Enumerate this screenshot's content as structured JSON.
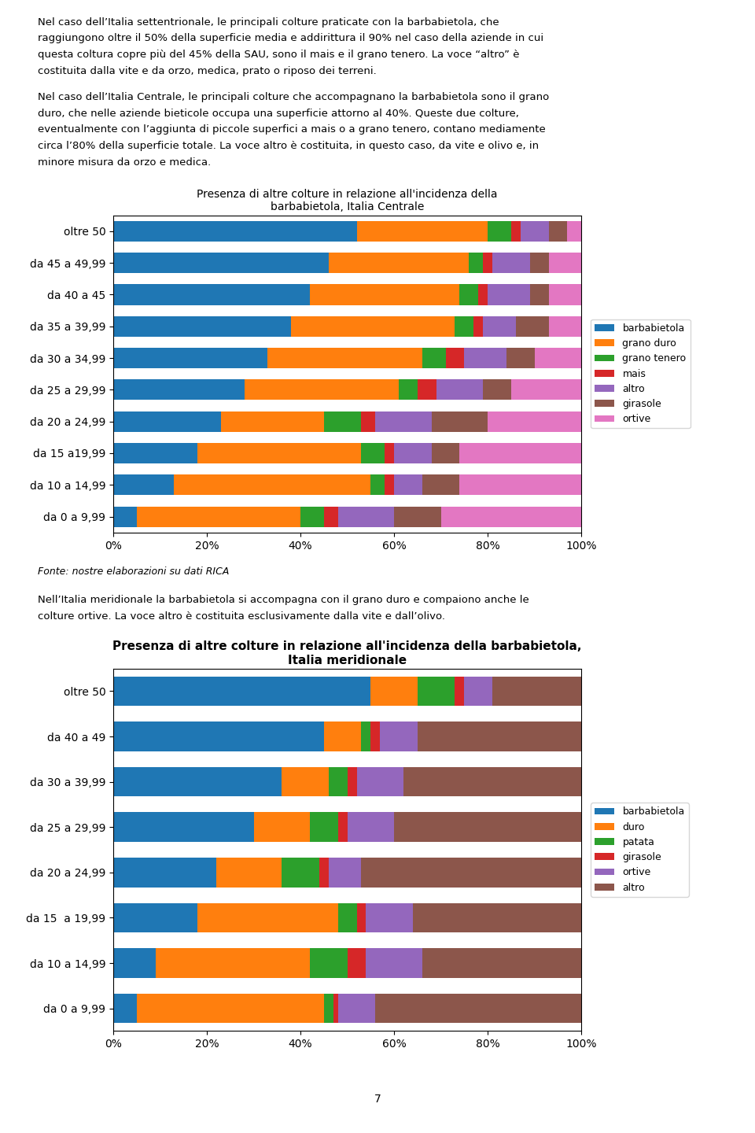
{
  "chart_data": [
    {
      "type": "bar",
      "orientation": "horizontal",
      "stacked": true,
      "grid": false,
      "legend": "right",
      "text_above": [
        [
          "Nel caso dell’Italia settentrionale, le principali colture praticate con la barbabietola, che",
          "raggiungono oltre il 50% della superficie media e addirittura il 90% nel caso della aziende in cui",
          "questa coltura copre più del 45% della SAU, sono il mais e il grano tenero. La voce “altro” è",
          "costituita dalla vite e da orzo, medica, prato o riposo dei terreni."
        ],
        [
          "Nel caso dell’Italia Centrale, le principali colture che accompagnano la barbabietola sono il grano",
          "duro, che nelle aziende bieticole occupa una superficie attorno al 40%. Queste due colture,",
          "eventualmente con l’aggiunta di piccole superfici a mais o a grano tenero, contano mediamente",
          "circa l’80% della superficie totale. La voce altro è costituita, in questo caso, da vite e olivo e, in",
          "minore misura da orzo e medica."
        ]
      ],
      "title": "Presenza di altre colture in relazione all'incidenza della\nbarbabietola, Italia Centrale",
      "categories": [
        "oltre 50",
        "da 45 a 49,99",
        "da 40 a 45",
        "da 35 a 39,99",
        "da 30 a 34,99",
        "da 25 a 29,99",
        "da 20 a 24,99",
        "da 15 a19,99",
        "da 10 a 14,99",
        "da 0 a 9,99"
      ],
      "series": [
        {
          "name": "barbabietola",
          "values": [
            0.52,
            0.46,
            0.42,
            0.38,
            0.33,
            0.28,
            0.23,
            0.18,
            0.13,
            0.05
          ]
        },
        {
          "name": "grano duro",
          "values": [
            0.28,
            0.3,
            0.32,
            0.35,
            0.33,
            0.33,
            0.22,
            0.35,
            0.42,
            0.35
          ]
        },
        {
          "name": "grano tenero",
          "values": [
            0.05,
            0.03,
            0.04,
            0.04,
            0.05,
            0.04,
            0.08,
            0.05,
            0.03,
            0.05
          ]
        },
        {
          "name": "mais",
          "values": [
            0.02,
            0.02,
            0.02,
            0.02,
            0.04,
            0.04,
            0.03,
            0.02,
            0.02,
            0.03
          ]
        },
        {
          "name": "altro",
          "values": [
            0.06,
            0.08,
            0.09,
            0.07,
            0.09,
            0.1,
            0.12,
            0.08,
            0.06,
            0.12
          ]
        },
        {
          "name": "girasole",
          "values": [
            0.04,
            0.04,
            0.04,
            0.07,
            0.06,
            0.06,
            0.12,
            0.06,
            0.08,
            0.1
          ]
        },
        {
          "name": "ortive",
          "values": [
            0.03,
            0.07,
            0.07,
            0.07,
            0.1,
            0.15,
            0.2,
            0.26,
            0.26,
            0.3
          ]
        }
      ],
      "xlim": [
        0,
        1
      ],
      "xticks": [
        {
          "value": 0,
          "label": "0%"
        },
        {
          "value": 0.2,
          "label": "20%"
        },
        {
          "value": 0.4,
          "label": "40%"
        },
        {
          "value": 0.6,
          "label": "60%"
        },
        {
          "value": 0.8,
          "label": "80%"
        },
        {
          "value": 1,
          "label": "100%"
        }
      ],
      "source": "Fonte: nostre elaborazioni su dati RICA"
    },
    {
      "type": "bar",
      "orientation": "horizontal",
      "stacked": true,
      "grid": false,
      "legend": "right",
      "text_above": [
        [
          "Nell’Italia meridionale la barbabietola si accompagna con il grano duro e compaiono anche le",
          "colture ortive. La voce altro è costituita esclusivamente dalla vite e dall’olivo."
        ]
      ],
      "title": "Presenza di altre colture in relazione all'incidenza della barbabietola,\nItalia meridionale",
      "categories": [
        "oltre 50",
        "da 40 a 49",
        "da 30 a 39,99",
        "da 25 a 29,99",
        "da 20 a 24,99",
        "da 15  a 19,99",
        "da 10 a 14,99",
        "da 0 a 9,99"
      ],
      "series": [
        {
          "name": "barbabietola",
          "values": [
            0.55,
            0.45,
            0.36,
            0.3,
            0.22,
            0.18,
            0.09,
            0.05
          ]
        },
        {
          "name": "duro",
          "values": [
            0.1,
            0.08,
            0.1,
            0.12,
            0.14,
            0.3,
            0.33,
            0.4
          ]
        },
        {
          "name": "patata",
          "values": [
            0.08,
            0.02,
            0.04,
            0.06,
            0.08,
            0.04,
            0.08,
            0.02
          ]
        },
        {
          "name": "girasole",
          "values": [
            0.02,
            0.02,
            0.02,
            0.02,
            0.02,
            0.02,
            0.04,
            0.01
          ]
        },
        {
          "name": "ortive",
          "values": [
            0.06,
            0.08,
            0.1,
            0.1,
            0.07,
            0.1,
            0.12,
            0.08
          ]
        },
        {
          "name": "altro",
          "values": [
            0.19,
            0.35,
            0.38,
            0.4,
            0.47,
            0.36,
            0.34,
            0.44
          ]
        }
      ],
      "xlim": [
        0,
        1
      ],
      "xticks": [
        {
          "value": 0,
          "label": "0%"
        },
        {
          "value": 0.2,
          "label": "20%"
        },
        {
          "value": 0.4,
          "label": "40%"
        },
        {
          "value": 0.6,
          "label": "60%"
        },
        {
          "value": 0.8,
          "label": "80%"
        },
        {
          "value": 1,
          "label": "100%"
        }
      ],
      "page_number": "7"
    }
  ]
}
